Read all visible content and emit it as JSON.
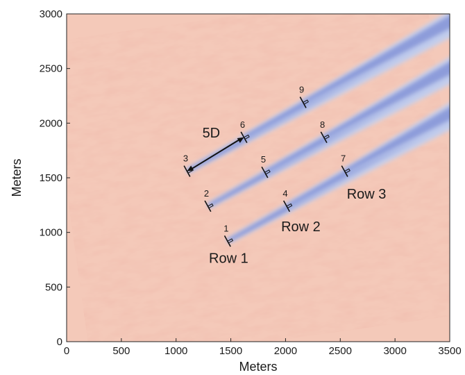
{
  "chart_data": {
    "type": "heatmap",
    "xlabel": "Meters",
    "ylabel": "Meters",
    "xlim": [
      0,
      3500
    ],
    "ylim": [
      0,
      3000
    ],
    "x_ticks": [
      0,
      500,
      1000,
      1500,
      2000,
      2500,
      3000,
      3500
    ],
    "y_ticks": [
      0,
      500,
      1000,
      1500,
      2000,
      2500,
      3000
    ],
    "background_color": "#f4c9b9",
    "wake_color": "#7e8ed4",
    "wind_direction_slope": 0.55,
    "turbines": [
      {
        "id": "1",
        "x": 1470,
        "y": 920
      },
      {
        "id": "2",
        "x": 1290,
        "y": 1240
      },
      {
        "id": "3",
        "x": 1100,
        "y": 1560
      },
      {
        "id": "4",
        "x": 2010,
        "y": 1240
      },
      {
        "id": "5",
        "x": 1810,
        "y": 1550
      },
      {
        "id": "6",
        "x": 1620,
        "y": 1870
      },
      {
        "id": "7",
        "x": 2540,
        "y": 1560
      },
      {
        "id": "8",
        "x": 2350,
        "y": 1870
      },
      {
        "id": "9",
        "x": 2160,
        "y": 2190
      }
    ],
    "row_labels": [
      {
        "text": "Row 1",
        "x": 1300,
        "y": 720
      },
      {
        "text": "Row 2",
        "x": 1960,
        "y": 1010
      },
      {
        "text": "Row 3",
        "x": 2560,
        "y": 1310
      }
    ],
    "distance_annotation": {
      "text": "5D",
      "from": [
        1100,
        1560
      ],
      "to": [
        1620,
        1870
      ],
      "label_x": 1240,
      "label_y": 1870
    }
  }
}
